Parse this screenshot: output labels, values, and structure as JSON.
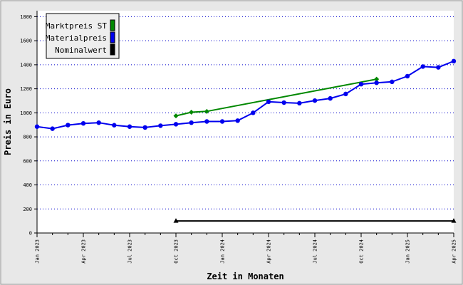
{
  "chart_data": {
    "type": "line",
    "xlabel": "Zeit in Monaten",
    "ylabel": "Preis in Euro",
    "ylim": [
      0,
      1850
    ],
    "yticks": [
      0,
      200,
      400,
      600,
      800,
      1000,
      1200,
      1400,
      1600,
      1800
    ],
    "xlim": [
      "2023-01",
      "2025-04"
    ],
    "x_tick_labels": [
      {
        "x": "2023-01",
        "label": "Jan 2023"
      },
      {
        "x": "2023-04",
        "label": "Apr 2023"
      },
      {
        "x": "2023-07",
        "label": "Jul 2023"
      },
      {
        "x": "2023-10",
        "label": "Oct 2023"
      },
      {
        "x": "2024-01",
        "label": "Jan 2024"
      },
      {
        "x": "2024-04",
        "label": "Apr 2024"
      },
      {
        "x": "2024-07",
        "label": "Jul 2024"
      },
      {
        "x": "2024-10",
        "label": "Oct 2024"
      },
      {
        "x": "2025-01",
        "label": "Jan 2025"
      },
      {
        "x": "2025-04",
        "label": "Apr 2025"
      }
    ],
    "grid": {
      "horizontal": true,
      "style": "dotted"
    },
    "legend_position": "top-left",
    "background": "#ffffff",
    "frame_color": "#e8e8e8",
    "grid_color": "#0000cc",
    "series": [
      {
        "name": "Marktpreis ST",
        "color": "#008800",
        "marker": "diamond",
        "x": [
          "2023-10",
          "2023-11",
          "2023-12",
          "2024-11"
        ],
        "values": [
          975,
          1005,
          1012,
          1280
        ]
      },
      {
        "name": "Materialpreis",
        "color": "#0000ee",
        "marker": "circle",
        "x": [
          "2023-01",
          "2023-02",
          "2023-03",
          "2023-04",
          "2023-05",
          "2023-06",
          "2023-07",
          "2023-08",
          "2023-09",
          "2023-10",
          "2023-11",
          "2023-12",
          "2024-01",
          "2024-02",
          "2024-03",
          "2024-04",
          "2024-05",
          "2024-06",
          "2024-07",
          "2024-08",
          "2024-09",
          "2024-10",
          "2024-11",
          "2024-12",
          "2025-01",
          "2025-02",
          "2025-03",
          "2025-04"
        ],
        "values": [
          885,
          868,
          898,
          912,
          918,
          897,
          885,
          878,
          893,
          905,
          918,
          928,
          928,
          935,
          1000,
          1092,
          1085,
          1080,
          1102,
          1120,
          1157,
          1238,
          1250,
          1258,
          1305,
          1385,
          1378,
          1430
        ]
      },
      {
        "name": "Nominalwert",
        "color": "#000000",
        "marker": "triangle",
        "x": [
          "2023-10",
          "2025-04"
        ],
        "values": [
          100,
          100
        ]
      }
    ]
  }
}
